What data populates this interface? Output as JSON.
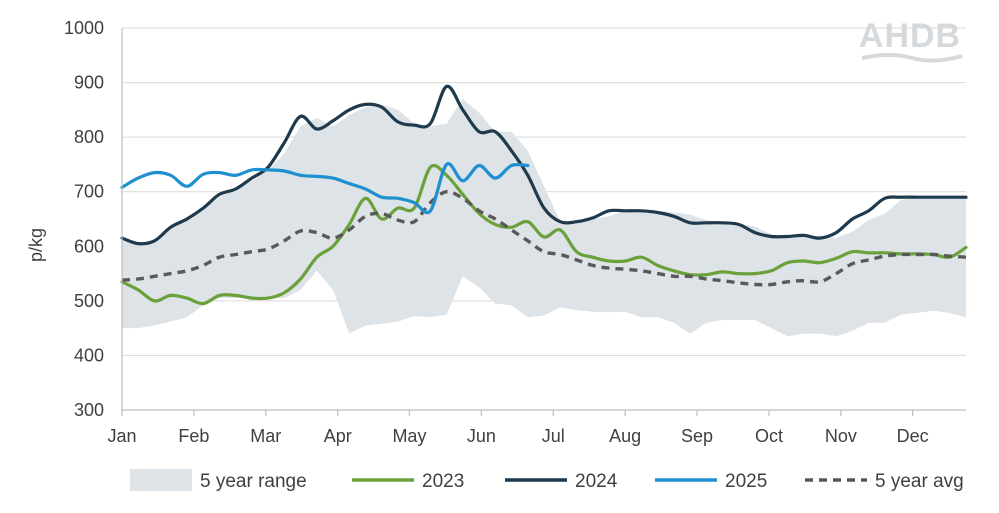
{
  "logo": {
    "text": "AHDB"
  },
  "chart_data": {
    "type": "line",
    "title": "",
    "xlabel": "",
    "ylabel": "p/kg",
    "ylim": [
      300,
      1000
    ],
    "yticks": [
      300,
      400,
      500,
      600,
      700,
      800,
      900,
      1000
    ],
    "xlim": [
      0,
      52
    ],
    "months": [
      {
        "label": "Jan",
        "week": 0
      },
      {
        "label": "Feb",
        "week": 4.43
      },
      {
        "label": "Mar",
        "week": 8.86
      },
      {
        "label": "Apr",
        "week": 13.29
      },
      {
        "label": "May",
        "week": 17.71
      },
      {
        "label": "Jun",
        "week": 22.14
      },
      {
        "label": "Jul",
        "week": 26.57
      },
      {
        "label": "Aug",
        "week": 31.0
      },
      {
        "label": "Sep",
        "week": 35.43
      },
      {
        "label": "Oct",
        "week": 39.86
      },
      {
        "label": "Nov",
        "week": 44.29
      },
      {
        "label": "Dec",
        "week": 48.71
      }
    ],
    "range": {
      "name": "5 year range",
      "color": "#dde3e7",
      "x": [
        0,
        1,
        2,
        3,
        4,
        5,
        6,
        7,
        8,
        9,
        10,
        11,
        12,
        13,
        14,
        15,
        16,
        17,
        18,
        19,
        20,
        21,
        22,
        23,
        24,
        25,
        26,
        27,
        28,
        29,
        30,
        31,
        32,
        33,
        34,
        35,
        36,
        37,
        38,
        39,
        40,
        41,
        42,
        43,
        44,
        45,
        46,
        47,
        48,
        49,
        50,
        51,
        52
      ],
      "low": [
        450,
        450,
        455,
        462,
        470,
        492,
        505,
        505,
        507,
        505,
        505,
        520,
        555,
        520,
        440,
        455,
        458,
        462,
        472,
        470,
        475,
        545,
        525,
        495,
        492,
        470,
        473,
        488,
        483,
        480,
        479,
        480,
        470,
        470,
        460,
        440,
        460,
        465,
        465,
        465,
        450,
        435,
        440,
        440,
        435,
        445,
        460,
        460,
        475,
        478,
        482,
        478,
        470
      ],
      "high": [
        610,
        605,
        610,
        635,
        650,
        670,
        690,
        705,
        720,
        740,
        770,
        820,
        835,
        820,
        840,
        855,
        860,
        850,
        825,
        820,
        825,
        870,
        845,
        810,
        810,
        775,
        710,
        645,
        645,
        650,
        655,
        665,
        665,
        665,
        662,
        658,
        648,
        643,
        642,
        636,
        622,
        615,
        618,
        620,
        615,
        627,
        648,
        660,
        685,
        690,
        690,
        690,
        690
      ]
    },
    "series": [
      {
        "name": "2023",
        "color": "#6aa13a",
        "style": "solid",
        "x": [
          0,
          1,
          2,
          3,
          4,
          5,
          6,
          7,
          8,
          9,
          10,
          11,
          12,
          13,
          14,
          15,
          16,
          17,
          18,
          19,
          20,
          21,
          22,
          23,
          24,
          25,
          26,
          27,
          28,
          29,
          30,
          31,
          32,
          33,
          34,
          35,
          36,
          37,
          38,
          39,
          40,
          41,
          42,
          43,
          44,
          45,
          46,
          47,
          48,
          49,
          50,
          51,
          52
        ],
        "y": [
          535,
          520,
          500,
          510,
          505,
          495,
          510,
          510,
          505,
          505,
          515,
          540,
          580,
          600,
          640,
          688,
          650,
          670,
          670,
          745,
          730,
          695,
          660,
          640,
          635,
          645,
          617,
          630,
          590,
          580,
          573,
          573,
          580,
          565,
          555,
          548,
          548,
          553,
          550,
          550,
          555,
          570,
          573,
          570,
          578,
          590,
          588,
          588,
          586,
          586,
          585,
          580,
          598
        ]
      },
      {
        "name": "2024",
        "color": "#1e3a4c",
        "style": "solid",
        "x": [
          0,
          1,
          2,
          3,
          4,
          5,
          6,
          7,
          8,
          9,
          10,
          11,
          12,
          13,
          14,
          15,
          16,
          17,
          18,
          19,
          20,
          21,
          22,
          23,
          24,
          25,
          26,
          27,
          28,
          29,
          30,
          31,
          32,
          33,
          34,
          35,
          36,
          37,
          38,
          39,
          40,
          41,
          42,
          43,
          44,
          45,
          46,
          47,
          48,
          49,
          50,
          51,
          52
        ],
        "y": [
          615,
          605,
          610,
          635,
          650,
          670,
          695,
          705,
          725,
          745,
          790,
          838,
          815,
          830,
          850,
          860,
          855,
          828,
          822,
          825,
          893,
          850,
          810,
          810,
          775,
          730,
          670,
          645,
          645,
          652,
          665,
          665,
          665,
          662,
          655,
          643,
          643,
          643,
          640,
          625,
          618,
          618,
          620,
          615,
          625,
          650,
          665,
          688,
          690,
          690,
          690,
          690,
          690
        ]
      },
      {
        "name": "2025",
        "color": "#1e90d0",
        "style": "solid",
        "x": [
          0,
          1,
          2,
          3,
          4,
          5,
          6,
          7,
          8,
          9,
          10,
          11,
          12,
          13,
          14,
          15,
          16,
          17,
          18,
          19,
          20,
          21,
          22,
          23,
          24,
          25
        ],
        "y": [
          708,
          725,
          735,
          730,
          710,
          732,
          735,
          730,
          740,
          740,
          738,
          730,
          728,
          725,
          715,
          705,
          690,
          688,
          680,
          665,
          750,
          720,
          748,
          725,
          748,
          748
        ]
      },
      {
        "name": "5 year avg",
        "color": "#595959",
        "style": "dashed",
        "x": [
          0,
          1,
          2,
          3,
          4,
          5,
          6,
          7,
          8,
          9,
          10,
          11,
          12,
          13,
          14,
          15,
          16,
          17,
          18,
          19,
          20,
          21,
          22,
          23,
          24,
          25,
          26,
          27,
          28,
          29,
          30,
          31,
          32,
          33,
          34,
          35,
          36,
          37,
          38,
          39,
          40,
          41,
          42,
          43,
          44,
          45,
          46,
          47,
          48,
          49,
          50,
          51,
          52
        ],
        "y": [
          538,
          540,
          545,
          550,
          555,
          565,
          580,
          585,
          590,
          595,
          610,
          628,
          625,
          615,
          630,
          655,
          660,
          648,
          645,
          680,
          700,
          688,
          665,
          650,
          630,
          610,
          590,
          585,
          575,
          565,
          560,
          558,
          555,
          550,
          545,
          545,
          540,
          537,
          533,
          530,
          530,
          535,
          537,
          535,
          550,
          568,
          575,
          582,
          585,
          585,
          585,
          582,
          580
        ]
      }
    ],
    "legend": {
      "placement": "bottom",
      "entries": [
        {
          "label": "5 year range",
          "kind": "area",
          "color": "#dde3e7"
        },
        {
          "label": "2023",
          "kind": "line",
          "color": "#6aa13a"
        },
        {
          "label": "2024",
          "kind": "line",
          "color": "#1e3a4c"
        },
        {
          "label": "2025",
          "kind": "line",
          "color": "#1e90d0"
        },
        {
          "label": "5 year avg",
          "kind": "dashed",
          "color": "#595959"
        }
      ]
    }
  }
}
